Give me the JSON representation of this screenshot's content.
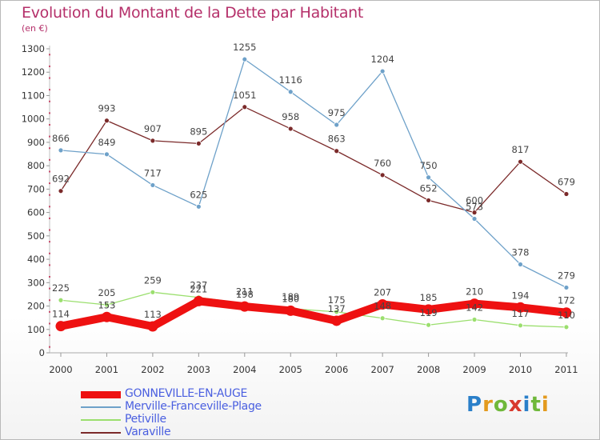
{
  "header": {
    "title": "Evolution du Montant de la Dette par Habitant",
    "subtitle": "(en €)"
  },
  "logo": {
    "text": "Proxiti",
    "colors": [
      "#2a7fc9",
      "#e39a1e",
      "#6fb83a",
      "#d83a2e",
      "#2a7fc9",
      "#6fb83a",
      "#e39a1e"
    ]
  },
  "chart_data": {
    "type": "line",
    "title": "Evolution du Montant de la Dette par Habitant",
    "ylabel": "(en €)",
    "xlabel": "",
    "x": [
      "2000",
      "2001",
      "2002",
      "2003",
      "2004",
      "2005",
      "2006",
      "2007",
      "2008",
      "2009",
      "2010",
      "2011"
    ],
    "ylim": [
      0,
      1300
    ],
    "yticks": [
      0,
      100,
      200,
      300,
      400,
      500,
      600,
      700,
      800,
      900,
      1000,
      1100,
      1200,
      1300
    ],
    "grid": false,
    "legend_position": "bottom",
    "series": [
      {
        "name": "GONNEVILLE-EN-AUGE",
        "color": "#ee1111",
        "width": 10,
        "values": [
          114,
          153,
          113,
          221,
          198,
          180,
          137,
          207,
          185,
          210,
          194,
          172
        ]
      },
      {
        "name": "Merville-Franceville-Plage",
        "color": "#6ea1c9",
        "width": 1.3,
        "values": [
          866,
          849,
          717,
          625,
          1255,
          1116,
          975,
          1204,
          750,
          573,
          378,
          279
        ]
      },
      {
        "name": "Petiville",
        "color": "#9bdf6e",
        "width": 1.3,
        "values": [
          225,
          205,
          259,
          237,
          211,
          189,
          175,
          148,
          119,
          142,
          117,
          110
        ]
      },
      {
        "name": "Varaville",
        "color": "#7b2a2a",
        "width": 1.3,
        "values": [
          692,
          993,
          907,
          895,
          1051,
          958,
          863,
          760,
          652,
          600,
          817,
          679
        ]
      }
    ]
  }
}
